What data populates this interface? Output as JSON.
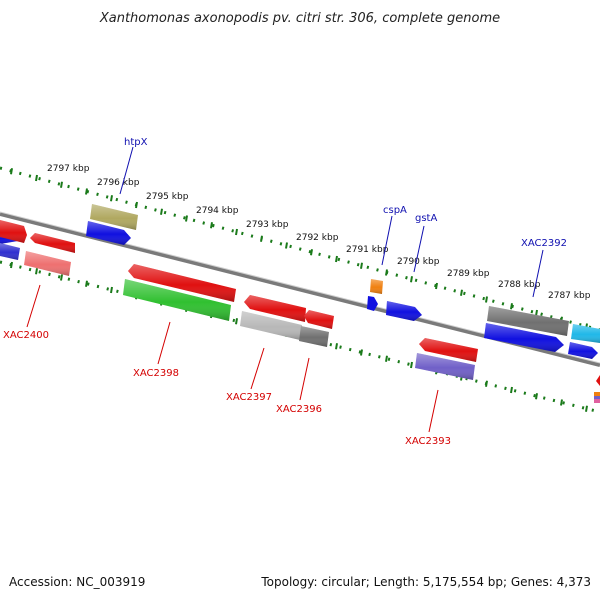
{
  "title": "Xanthomonas axonopodis pv. citri str. 306, complete genome",
  "footer": {
    "accession": "Accession: NC_003919",
    "summary": "Topology: circular; Length: 5,175,554 bp; Genes: 4,373"
  },
  "ruler": {
    "unit": "kbp",
    "labels": [
      "2797 kbp",
      "2796 kbp",
      "2795 kbp",
      "2794 kbp",
      "2793 kbp",
      "2792 kbp",
      "2791 kbp",
      "2790 kbp",
      "2789 kbp",
      "2788 kbp",
      "2787 kbp"
    ]
  },
  "genes_forward": [
    {
      "label": "htpX",
      "color": "#1010b0"
    },
    {
      "label": "cspA",
      "color": "#1010b0"
    },
    {
      "label": "gstA",
      "color": "#1010b0"
    },
    {
      "label": "XAC2392",
      "color": "#1010b0"
    }
  ],
  "genes_reverse": [
    {
      "label": "XAC2400",
      "color": "#d40000"
    },
    {
      "label": "XAC2398",
      "color": "#d40000"
    },
    {
      "label": "XAC2397",
      "color": "#d40000"
    },
    {
      "label": "XAC2396",
      "color": "#d40000"
    },
    {
      "label": "XAC2393",
      "color": "#d40000"
    }
  ],
  "colors": {
    "backbone": "#7a7a7a",
    "ticks": "#1a7a1a",
    "red": "#e01010",
    "blue": "#1010e0",
    "green": "#30c030",
    "olive": "#b0a860",
    "gray": "#707070",
    "lightgray": "#b8b8b8",
    "salmon": "#ee7070",
    "violet": "#7060c8",
    "cyan": "#20b8e8",
    "orange": "#f08010"
  }
}
